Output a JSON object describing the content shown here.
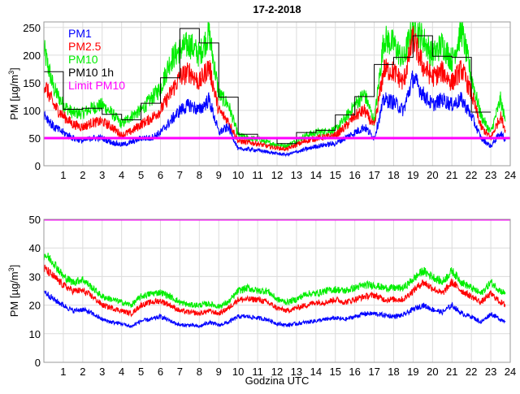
{
  "chart_data": [
    {
      "type": "line",
      "title": "17-2-2018",
      "xlabel": "",
      "ylabel": "PM [µg/m³]",
      "ylabel_parts": [
        "PM [µg/m",
        "3",
        "]"
      ],
      "xlim": [
        0,
        24
      ],
      "ylim": [
        0,
        260
      ],
      "yticks": [
        0,
        50,
        100,
        150,
        200,
        250
      ],
      "xticks": [
        1,
        2,
        3,
        4,
        5,
        6,
        7,
        8,
        9,
        10,
        11,
        12,
        13,
        14,
        15,
        16,
        17,
        18,
        19,
        20,
        21,
        22,
        23,
        24
      ],
      "grid": true,
      "legend_position": "top-left",
      "x": [
        0,
        0.5,
        1,
        1.5,
        2,
        2.5,
        3,
        3.5,
        4,
        4.5,
        5,
        5.5,
        6,
        6.5,
        7,
        7.5,
        8,
        8.5,
        9,
        9.5,
        10,
        10.5,
        11,
        11.5,
        12,
        12.5,
        13,
        13.5,
        14,
        14.5,
        15,
        15.5,
        16,
        16.5,
        17,
        17.5,
        18,
        18.5,
        19,
        19.5,
        20,
        20.5,
        21,
        21.5,
        22,
        22.5,
        23,
        23.5,
        23.75
      ],
      "series": [
        {
          "name": "PM1",
          "color": "#0000ff",
          "values": [
            95,
            70,
            60,
            50,
            45,
            50,
            50,
            42,
            38,
            42,
            50,
            50,
            60,
            80,
            100,
            110,
            100,
            120,
            60,
            70,
            30,
            30,
            28,
            25,
            22,
            20,
            25,
            30,
            35,
            38,
            40,
            50,
            60,
            70,
            50,
            120,
            115,
            100,
            160,
            130,
            110,
            120,
            110,
            120,
            90,
            50,
            35,
            60,
            45
          ]
        },
        {
          "name": "PM2.5",
          "color": "#ff0000",
          "values": [
            150,
            110,
            90,
            75,
            70,
            78,
            80,
            70,
            55,
            62,
            75,
            85,
            100,
            130,
            160,
            170,
            150,
            180,
            100,
            80,
            45,
            42,
            40,
            35,
            32,
            30,
            38,
            45,
            50,
            52,
            55,
            70,
            90,
            100,
            70,
            175,
            170,
            150,
            230,
            180,
            160,
            170,
            150,
            175,
            130,
            70,
            50,
            90,
            65
          ]
        },
        {
          "name": "PM10",
          "color": "#00ee00",
          "values": [
            210,
            140,
            110,
            95,
            95,
            105,
            110,
            95,
            75,
            90,
            100,
            120,
            140,
            190,
            210,
            220,
            200,
            240,
            130,
            110,
            55,
            50,
            48,
            42,
            38,
            36,
            45,
            55,
            60,
            62,
            65,
            85,
            110,
            130,
            80,
            230,
            220,
            190,
            255,
            230,
            200,
            220,
            190,
            245,
            160,
            90,
            60,
            120,
            80
          ]
        }
      ],
      "hourly": {
        "name": "PM10 1h",
        "color": "#000000",
        "hours": [
          0,
          1,
          2,
          3,
          4,
          5,
          6,
          7,
          8,
          9,
          10,
          11,
          12,
          13,
          14,
          15,
          16,
          17,
          18,
          19,
          20,
          21,
          22
        ],
        "values": [
          170,
          102,
          104,
          93,
          83,
          113,
          159,
          248,
          222,
          124,
          57,
          50,
          40,
          60,
          64,
          92,
          125,
          183,
          196,
          235,
          198,
          196,
          97
        ]
      },
      "limit": {
        "name": "Limit PM10",
        "color": "#ff00ff",
        "value": 50
      }
    },
    {
      "type": "line",
      "title": "",
      "xlabel": "Godzina UTC",
      "ylabel": "PM [µg/m³]",
      "ylabel_parts": [
        "PM [µg/m",
        "3",
        "]"
      ],
      "xlim": [
        0,
        24
      ],
      "ylim": [
        0,
        50
      ],
      "yticks": [
        0,
        10,
        20,
        30,
        40,
        50
      ],
      "xticks": [
        1,
        2,
        3,
        4,
        5,
        6,
        7,
        8,
        9,
        10,
        11,
        12,
        13,
        14,
        15,
        16,
        17,
        18,
        19,
        20,
        21,
        22,
        23,
        24
      ],
      "grid": true,
      "x": [
        0,
        0.5,
        1,
        1.5,
        2,
        2.5,
        3,
        3.5,
        4,
        4.5,
        5,
        5.5,
        6,
        6.5,
        7,
        7.5,
        8,
        8.5,
        9,
        9.5,
        10,
        10.5,
        11,
        11.5,
        12,
        12.5,
        13,
        13.5,
        14,
        14.5,
        15,
        15.5,
        16,
        16.5,
        17,
        17.5,
        18,
        18.5,
        19,
        19.5,
        20,
        20.5,
        21,
        21.5,
        22,
        22.5,
        23,
        23.5,
        23.75
      ],
      "series": [
        {
          "name": "PM1",
          "color": "#0000ff",
          "values": [
            25,
            22,
            20,
            18,
            18.5,
            17,
            15,
            14,
            13.5,
            12.5,
            14.5,
            15,
            16,
            14.5,
            13,
            13,
            12.5,
            14,
            13,
            14,
            16,
            16,
            15.5,
            15,
            13.5,
            13,
            13.5,
            14,
            14.5,
            15,
            15.5,
            15,
            16,
            17,
            17,
            16.5,
            16,
            16.5,
            18.5,
            20,
            18.5,
            17.5,
            20,
            17,
            16,
            14,
            17,
            15,
            14.5
          ]
        },
        {
          "name": "PM2.5",
          "color": "#ff0000",
          "values": [
            33,
            30,
            27,
            25,
            25,
            23,
            20,
            19,
            18,
            17,
            20,
            21,
            21.5,
            20,
            18,
            17.5,
            17,
            18,
            17,
            19,
            22,
            22,
            22,
            21,
            19,
            18,
            19,
            20,
            21,
            21,
            22,
            21,
            22,
            23,
            23.5,
            22,
            22,
            22,
            25,
            28,
            26,
            24,
            28,
            25,
            23,
            21,
            24,
            21,
            20
          ]
        },
        {
          "name": "PM10",
          "color": "#00ee00",
          "values": [
            38,
            35,
            30,
            28,
            29,
            26,
            23,
            22,
            21,
            20,
            23,
            24,
            24.5,
            23,
            21,
            20,
            20,
            20.5,
            19.5,
            21,
            25,
            26,
            25,
            25,
            22,
            21,
            22,
            24,
            24,
            25,
            25.5,
            25,
            26,
            27,
            27,
            26,
            26,
            26,
            29,
            32,
            30,
            28,
            32,
            28,
            26,
            24,
            28,
            25,
            24
          ]
        }
      ],
      "limit": {
        "name": "Limit PM10",
        "color": "#ff00ff",
        "value": 50
      }
    }
  ]
}
